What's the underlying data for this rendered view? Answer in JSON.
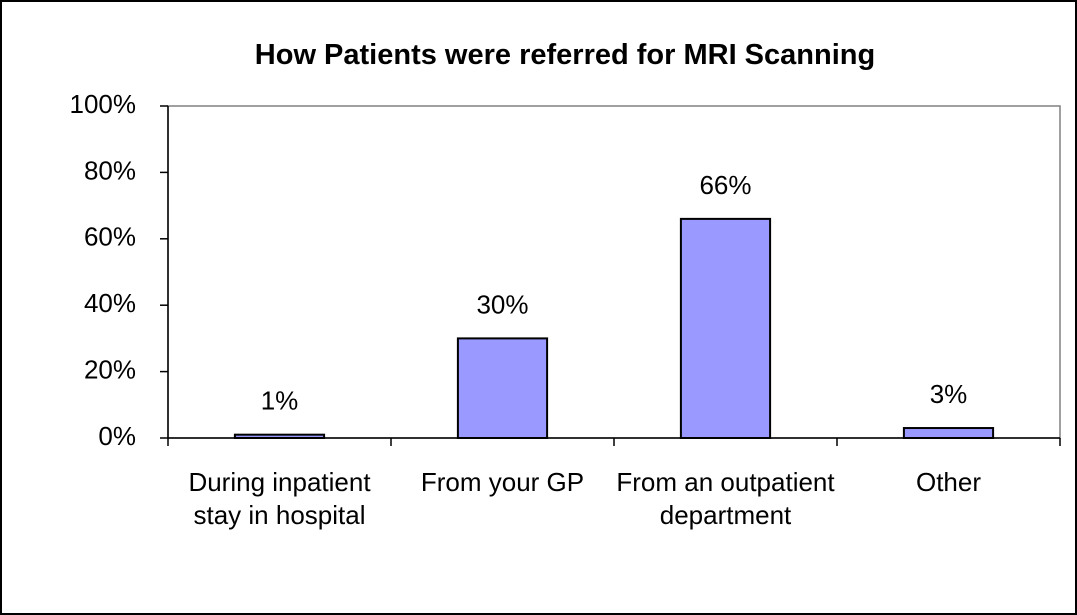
{
  "chart_data": {
    "type": "bar",
    "title": "How Patients were referred for MRI Scanning",
    "categories": [
      "During inpatient stay in hospital",
      "From your GP",
      "From an outpatient department",
      "Other"
    ],
    "values": [
      1,
      30,
      66,
      3
    ],
    "value_labels": [
      "1%",
      "30%",
      "66%",
      "3%"
    ],
    "color": "#9999ff",
    "ylim": [
      0,
      100
    ],
    "yticks": [
      {
        "value": 0,
        "label": "0%"
      },
      {
        "value": 20,
        "label": "20%"
      },
      {
        "value": 40,
        "label": "40%"
      },
      {
        "value": 60,
        "label": "60%"
      },
      {
        "value": 80,
        "label": "80%"
      },
      {
        "value": 100,
        "label": "100%"
      }
    ],
    "grid": false
  }
}
